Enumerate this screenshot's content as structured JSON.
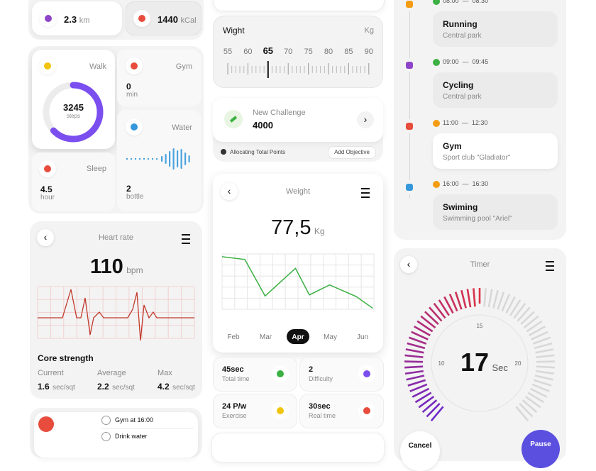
{
  "top_stats": [
    {
      "value": "2.3",
      "unit": "km"
    },
    {
      "value": "1440",
      "unit": "kCal"
    }
  ],
  "walk": {
    "label": "Walk",
    "value": "3245",
    "unit": "steps"
  },
  "gym": {
    "label": "Gym",
    "value": "0",
    "unit": "min"
  },
  "water": {
    "label": "Water",
    "value": "2",
    "unit": "bottle"
  },
  "sleep": {
    "label": "Sleep",
    "value": "4.5",
    "unit": "hour"
  },
  "heart_rate": {
    "title": "Heart rate",
    "value": "110",
    "unit": "bpm"
  },
  "core_strength": {
    "title": "Core strength",
    "stats": [
      {
        "label": "Current",
        "value": "1.6",
        "unit": "sec/sqt"
      },
      {
        "label": "Average",
        "value": "2.2",
        "unit": "sec/sqt"
      },
      {
        "label": "Max",
        "value": "4.2",
        "unit": "sec/sqt"
      }
    ]
  },
  "reminders": [
    "Gym at 16:00",
    "Drink water"
  ],
  "weight_scale": {
    "title": "Wight",
    "unit": "Kg",
    "ticks": [
      55,
      60,
      65,
      70,
      75,
      80,
      85,
      90
    ],
    "selected": 65
  },
  "challenge": {
    "label": "New Challenge",
    "value": "4000",
    "note": "Allocating Total Points",
    "button": "Add Objective"
  },
  "weight_chart": {
    "type": "line",
    "title": "Weight",
    "value": "77,5",
    "unit": "Kg",
    "months": [
      "Feb",
      "Mar",
      "Apr",
      "May",
      "Jun"
    ],
    "selected": "Apr",
    "x": [
      0,
      1.8,
      3.4,
      5.8,
      6.9,
      8.5,
      10.6,
      11.9
    ],
    "values": [
      4.75,
      4.5,
      1.2,
      3.7,
      1.3,
      2.2,
      1.15,
      0.1
    ],
    "xlim": [
      0,
      12
    ],
    "ylim": [
      0,
      5
    ],
    "color": "#3cb043"
  },
  "stats": [
    {
      "value": "45sec",
      "label": "Total time"
    },
    {
      "value": "2",
      "label": "Difficulty"
    },
    {
      "value": "24 P/w",
      "label": "Exercise"
    },
    {
      "value": "30sec",
      "label": "Real time"
    }
  ],
  "schedule": [
    {
      "start": "08:00",
      "end": "08:30",
      "title": "Running",
      "place": "Central park"
    },
    {
      "start": "09:00",
      "end": "09:45",
      "title": "Cycling",
      "place": "Central park"
    },
    {
      "start": "11:00",
      "end": "12:30",
      "title": "Gym",
      "place": "Sport club \"Gladiator\""
    },
    {
      "start": "16:00",
      "end": "16:30",
      "title": "Swiming",
      "place": "Swimming pool \"Ariel\""
    }
  ],
  "timer": {
    "title": "Timer",
    "value": "17",
    "unit": "Sec",
    "scale": [
      "10",
      "15",
      "20"
    ],
    "buttons": [
      "Cancel",
      "Pause"
    ]
  }
}
